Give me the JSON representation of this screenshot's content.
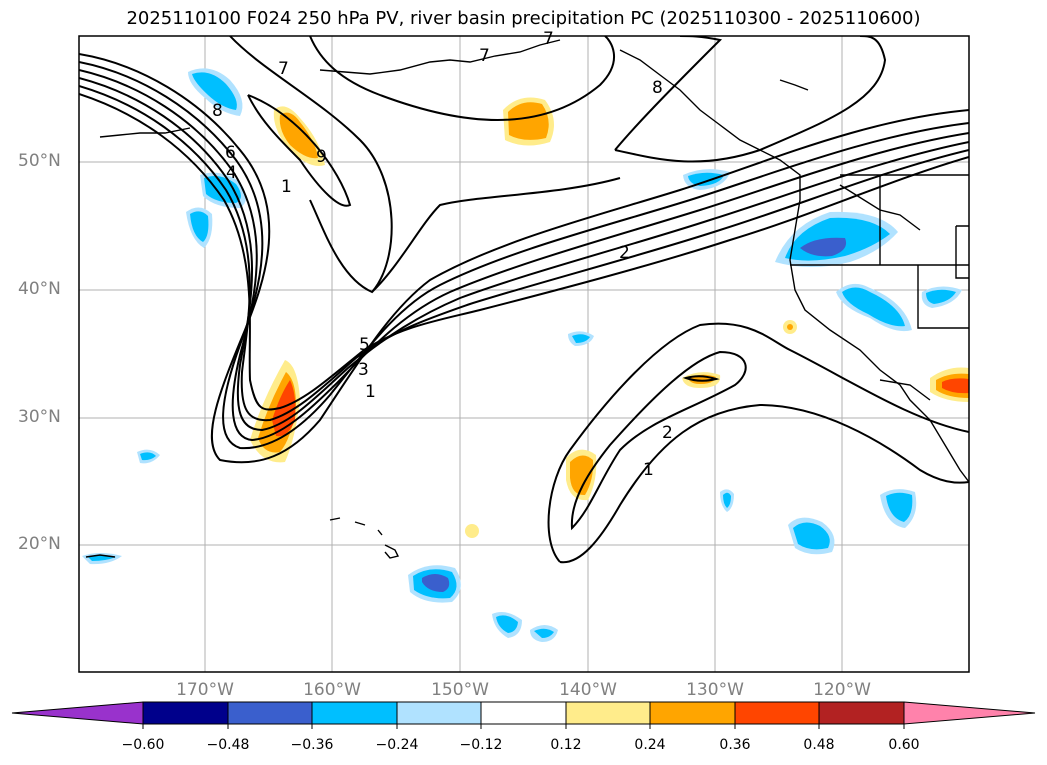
{
  "title": "2025110100 F024 250 hPa PV, river basin precipitation PC (2025110300 - 2025110600)",
  "lat_labels": [
    "50°N",
    "40°N",
    "30°N",
    "20°N"
  ],
  "lon_labels": [
    "170°W",
    "160°W",
    "150°W",
    "140°W",
    "130°W",
    "120°W"
  ],
  "contour_labels": [
    "7",
    "7",
    "7",
    "8",
    "9",
    "6",
    "4",
    "1",
    "2",
    "5",
    "3",
    "1",
    "2",
    "1",
    "8"
  ],
  "colorbar": {
    "ticks": [
      "−0.60",
      "−0.48",
      "−0.36",
      "−0.24",
      "−0.12",
      "0.12",
      "0.24",
      "0.36",
      "0.48",
      "0.60"
    ],
    "colors": [
      "#9932cc",
      "#00008b",
      "#3a5fcd",
      "#00bfff",
      "#b0e2ff",
      "#ffffff",
      "#ffec8b",
      "#ffa500",
      "#ff4500",
      "#b22222",
      "#ff82ab"
    ]
  }
}
